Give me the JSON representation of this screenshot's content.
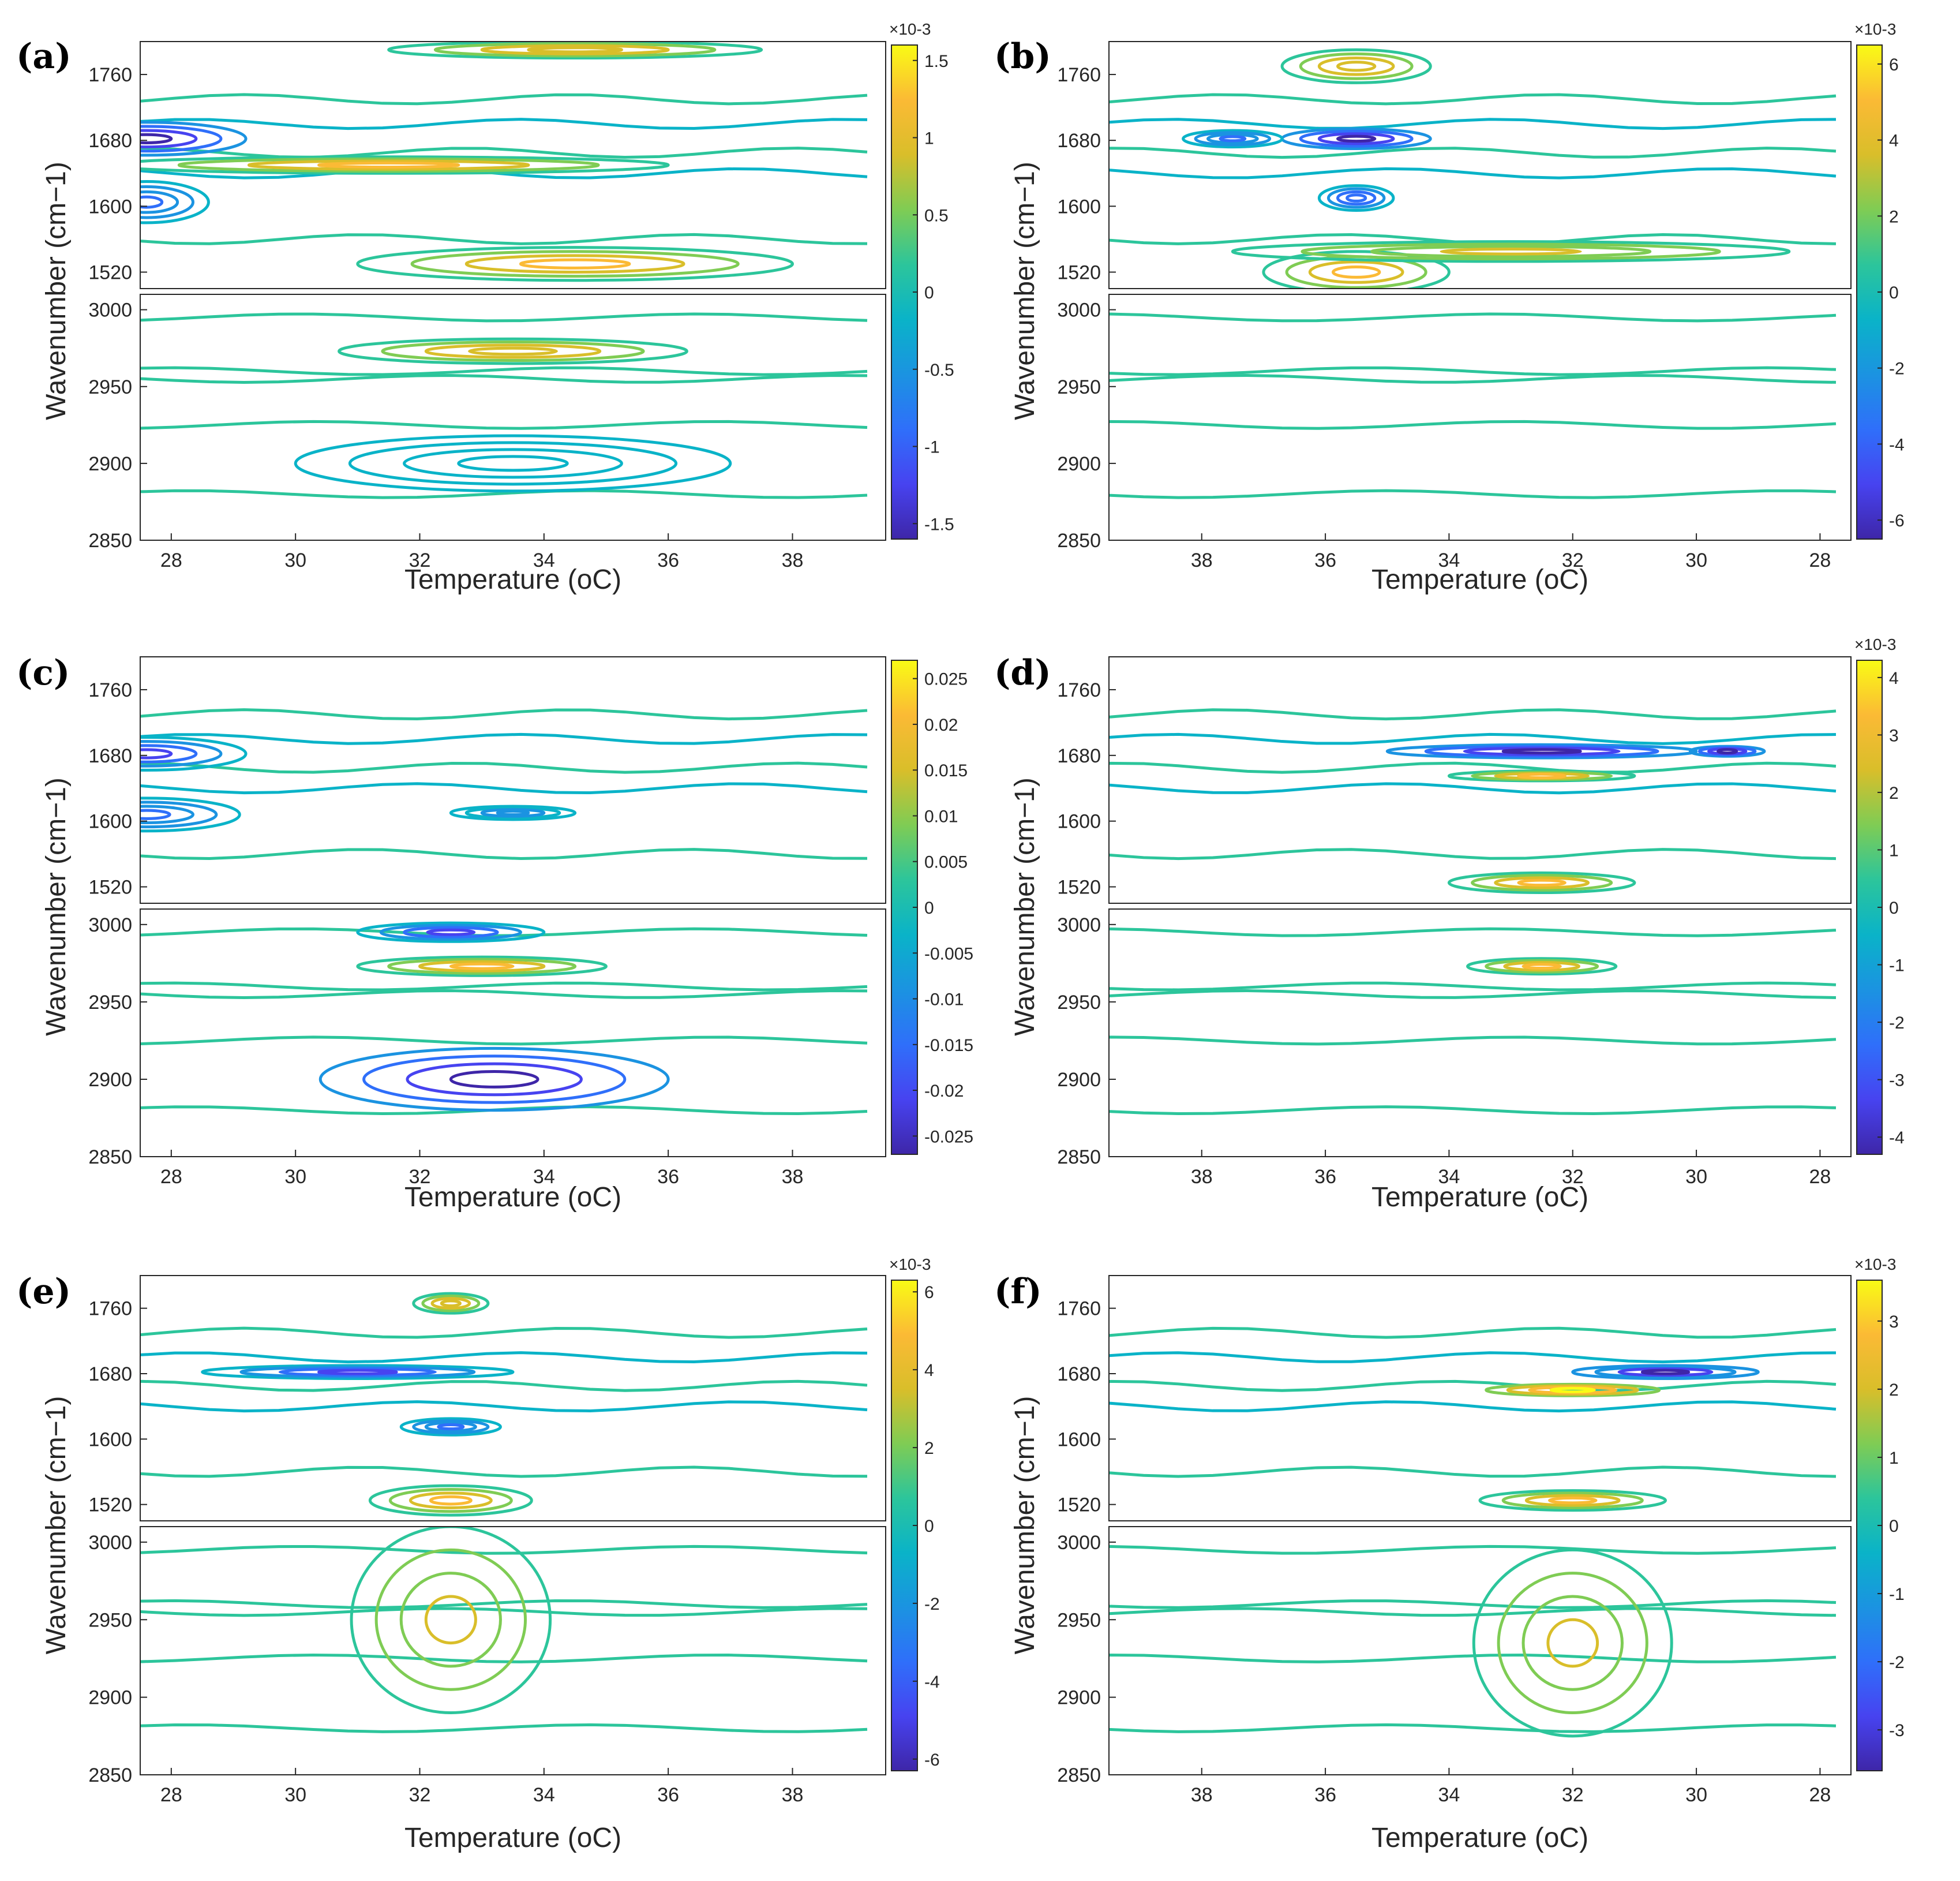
{
  "figure": {
    "palette": [
      "#3e26a8",
      "#4743f0",
      "#2f6ffa",
      "#1b93e1",
      "#0ab3c8",
      "#2cc59b",
      "#7fcc54",
      "#d9be2a",
      "#fbba35",
      "#f9fb15"
    ],
    "axis_color": "#262626"
  },
  "chart_data": [
    {
      "panel": "(a)",
      "type": "contour",
      "xlabel": "Temperature (oC)",
      "ylabel": "Wavenumber (cm−1)",
      "x_range": [
        27.5,
        39.5
      ],
      "x_direction": "increasing",
      "x_ticks": [
        "28",
        "30",
        "32",
        "34",
        "36",
        "38"
      ],
      "y_top_ticks": [
        "1760",
        "1680",
        "1600",
        "1520"
      ],
      "y_top_range": [
        1500,
        1800
      ],
      "y_bottom_ticks": [
        "3000",
        "2950",
        "2900",
        "2850"
      ],
      "y_bottom_range": [
        2850,
        3010
      ],
      "colorbar": {
        "exponent": "×10-3",
        "ticks": [
          "1.5",
          "1",
          "0.5",
          "0",
          "-0.5",
          "-1",
          "-1.5"
        ],
        "range": [
          -1.6,
          1.6
        ]
      },
      "features": [
        {
          "region": "top",
          "x": 27.6,
          "y": 1682,
          "rx": 1.6,
          "ry": 20,
          "value": -1.5
        },
        {
          "region": "top",
          "x": 27.6,
          "y": 1605,
          "rx": 1.0,
          "ry": 25,
          "value": -0.8
        },
        {
          "region": "top",
          "x": 31.5,
          "y": 1650,
          "rx": 4.5,
          "ry": 10,
          "value": 1.2
        },
        {
          "region": "top",
          "x": 34.5,
          "y": 1530,
          "rx": 3.5,
          "ry": 20,
          "value": 1.3
        },
        {
          "region": "top",
          "x": 34.5,
          "y": 1790,
          "rx": 3.0,
          "ry": 10,
          "value": 1.0
        },
        {
          "region": "bottom",
          "x": 33.5,
          "y": 2973,
          "rx": 2.8,
          "ry": 8,
          "value": 1.0
        },
        {
          "region": "bottom",
          "x": 33.5,
          "y": 2900,
          "rx": 3.5,
          "ry": 18,
          "value": -0.3
        }
      ]
    },
    {
      "panel": "(b)",
      "type": "contour",
      "xlabel": "Temperature (oC)",
      "ylabel": "Wavenumber (cm−1)",
      "x_range": [
        39.5,
        27.5
      ],
      "x_direction": "decreasing",
      "x_ticks": [
        "38",
        "36",
        "34",
        "32",
        "30",
        "28"
      ],
      "y_top_ticks": [
        "1760",
        "1680",
        "1600",
        "1520"
      ],
      "y_top_range": [
        1500,
        1800
      ],
      "y_bottom_ticks": [
        "3000",
        "2950",
        "2900",
        "2850"
      ],
      "y_bottom_range": [
        2850,
        3010
      ],
      "colorbar": {
        "exponent": "×10-3",
        "ticks": [
          "6",
          "4",
          "2",
          "0",
          "-2",
          "-4",
          "-6"
        ],
        "range": [
          -6.5,
          6.5
        ]
      },
      "features": [
        {
          "region": "top",
          "x": 35.5,
          "y": 1682,
          "rx": 1.2,
          "ry": 12,
          "value": -6
        },
        {
          "region": "top",
          "x": 37.5,
          "y": 1682,
          "rx": 0.8,
          "ry": 10,
          "value": -3
        },
        {
          "region": "top",
          "x": 35.5,
          "y": 1610,
          "rx": 0.6,
          "ry": 15,
          "value": -4
        },
        {
          "region": "top",
          "x": 35.5,
          "y": 1520,
          "rx": 1.5,
          "ry": 25,
          "value": 5
        },
        {
          "region": "top",
          "x": 33.0,
          "y": 1545,
          "rx": 4.5,
          "ry": 12,
          "value": 3.5
        },
        {
          "region": "top",
          "x": 35.5,
          "y": 1770,
          "rx": 1.2,
          "ry": 20,
          "value": 4
        }
      ]
    },
    {
      "panel": "(c)",
      "type": "contour",
      "xlabel": "Temperature (oC)",
      "ylabel": "Wavenumber (cm−1)",
      "x_range": [
        27.5,
        39.5
      ],
      "x_direction": "increasing",
      "x_ticks": [
        "28",
        "30",
        "32",
        "34",
        "36",
        "38"
      ],
      "y_top_ticks": [
        "1760",
        "1680",
        "1600",
        "1520"
      ],
      "y_top_range": [
        1500,
        1800
      ],
      "y_bottom_ticks": [
        "3000",
        "2950",
        "2900",
        "2850"
      ],
      "y_bottom_range": [
        2850,
        3010
      ],
      "colorbar": {
        "exponent": "",
        "ticks": [
          "0.025",
          "0.02",
          "0.015",
          "0.01",
          "0.005",
          "0",
          "-0.005",
          "-0.01",
          "-0.015",
          "-0.02",
          "-0.025"
        ],
        "range": [
          -0.027,
          0.027
        ]
      },
      "features": [
        {
          "region": "top",
          "x": 27.6,
          "y": 1682,
          "rx": 1.6,
          "ry": 20,
          "value": -0.02
        },
        {
          "region": "top",
          "x": 27.6,
          "y": 1608,
          "rx": 1.5,
          "ry": 20,
          "value": -0.015
        },
        {
          "region": "top",
          "x": 33.5,
          "y": 1610,
          "rx": 1.0,
          "ry": 8,
          "value": -0.008
        },
        {
          "region": "bottom",
          "x": 33.0,
          "y": 2973,
          "rx": 2.0,
          "ry": 6,
          "value": 0.02
        },
        {
          "region": "bottom",
          "x": 33.2,
          "y": 2900,
          "rx": 2.8,
          "ry": 20,
          "value": -0.025
        },
        {
          "region": "bottom",
          "x": 32.5,
          "y": 2995,
          "rx": 1.5,
          "ry": 6,
          "value": -0.022
        }
      ]
    },
    {
      "panel": "(d)",
      "type": "contour",
      "xlabel": "Temperature (oC)",
      "ylabel": "Wavenumber (cm−1)",
      "x_range": [
        39.5,
        27.5
      ],
      "x_direction": "decreasing",
      "x_ticks": [
        "38",
        "36",
        "34",
        "32",
        "30",
        "28"
      ],
      "y_top_ticks": [
        "1760",
        "1680",
        "1600",
        "1520"
      ],
      "y_top_range": [
        1500,
        1800
      ],
      "y_bottom_ticks": [
        "3000",
        "2950",
        "2900",
        "2850"
      ],
      "y_bottom_range": [
        2850,
        3010
      ],
      "colorbar": {
        "exponent": "×10-3",
        "ticks": [
          "4",
          "3",
          "2",
          "1",
          "0",
          "-1",
          "-2",
          "-3",
          "-4"
        ],
        "range": [
          -4.3,
          4.3
        ]
      },
      "features": [
        {
          "region": "top",
          "x": 32.5,
          "y": 1685,
          "rx": 2.5,
          "ry": 8,
          "value": -4
        },
        {
          "region": "top",
          "x": 29.5,
          "y": 1685,
          "rx": 0.6,
          "ry": 6,
          "value": -4
        },
        {
          "region": "top",
          "x": 32.5,
          "y": 1655,
          "rx": 1.5,
          "ry": 6,
          "value": 3.8
        },
        {
          "region": "top",
          "x": 32.5,
          "y": 1525,
          "rx": 1.5,
          "ry": 12,
          "value": 3.5
        },
        {
          "region": "bottom",
          "x": 32.5,
          "y": 2973,
          "rx": 1.2,
          "ry": 5,
          "value": 3
        }
      ]
    },
    {
      "panel": "(e)",
      "type": "contour",
      "xlabel": "Temperature (oC)",
      "ylabel": "Wavenumber (cm−1)",
      "x_range": [
        27.5,
        39.5
      ],
      "x_direction": "increasing",
      "x_ticks": [
        "28",
        "30",
        "32",
        "34",
        "36",
        "38"
      ],
      "y_top_ticks": [
        "1760",
        "1680",
        "1600",
        "1520"
      ],
      "y_top_range": [
        1500,
        1800
      ],
      "y_bottom_ticks": [
        "3000",
        "2950",
        "2900",
        "2850"
      ],
      "y_bottom_range": [
        2850,
        3010
      ],
      "colorbar": {
        "exponent": "×10-3",
        "ticks": [
          "6",
          "4",
          "2",
          "0",
          "-2",
          "-4",
          "-6"
        ],
        "range": [
          -6.3,
          6.3
        ]
      },
      "features": [
        {
          "region": "top",
          "x": 31.0,
          "y": 1682,
          "rx": 2.5,
          "ry": 8,
          "value": -5.5
        },
        {
          "region": "top",
          "x": 32.5,
          "y": 1525,
          "rx": 1.3,
          "ry": 18,
          "value": 5
        },
        {
          "region": "top",
          "x": 32.5,
          "y": 1766,
          "rx": 0.6,
          "ry": 12,
          "value": 4
        },
        {
          "region": "top",
          "x": 32.5,
          "y": 1615,
          "rx": 0.8,
          "ry": 10,
          "value": -3.5
        },
        {
          "region": "bottom",
          "x": 32.5,
          "y": 2950,
          "rx": 1.6,
          "ry": 60,
          "value": 3
        }
      ]
    },
    {
      "panel": "(f)",
      "type": "contour",
      "xlabel": "Temperature (oC)",
      "ylabel": "Wavenumber (cm−1)",
      "x_range": [
        39.5,
        27.5
      ],
      "x_direction": "decreasing",
      "x_ticks": [
        "38",
        "36",
        "34",
        "32",
        "30",
        "28"
      ],
      "y_top_ticks": [
        "1760",
        "1680",
        "1600",
        "1520"
      ],
      "y_top_range": [
        1500,
        1800
      ],
      "y_bottom_ticks": [
        "3000",
        "2950",
        "2900",
        "2850"
      ],
      "y_bottom_range": [
        2850,
        3010
      ],
      "colorbar": {
        "exponent": "×10-3",
        "ticks": [
          "3",
          "2",
          "1",
          "0",
          "-1",
          "-2",
          "-3"
        ],
        "range": [
          -3.6,
          3.6
        ]
      },
      "features": [
        {
          "region": "top",
          "x": 30.5,
          "y": 1682,
          "rx": 1.5,
          "ry": 8,
          "value": -3.2
        },
        {
          "region": "top",
          "x": 32.0,
          "y": 1660,
          "rx": 1.4,
          "ry": 7,
          "value": 3.3
        },
        {
          "region": "top",
          "x": 32.0,
          "y": 1525,
          "rx": 1.5,
          "ry": 12,
          "value": 3
        },
        {
          "region": "bottom",
          "x": 32.0,
          "y": 2935,
          "rx": 1.6,
          "ry": 60,
          "value": 2
        }
      ]
    }
  ]
}
